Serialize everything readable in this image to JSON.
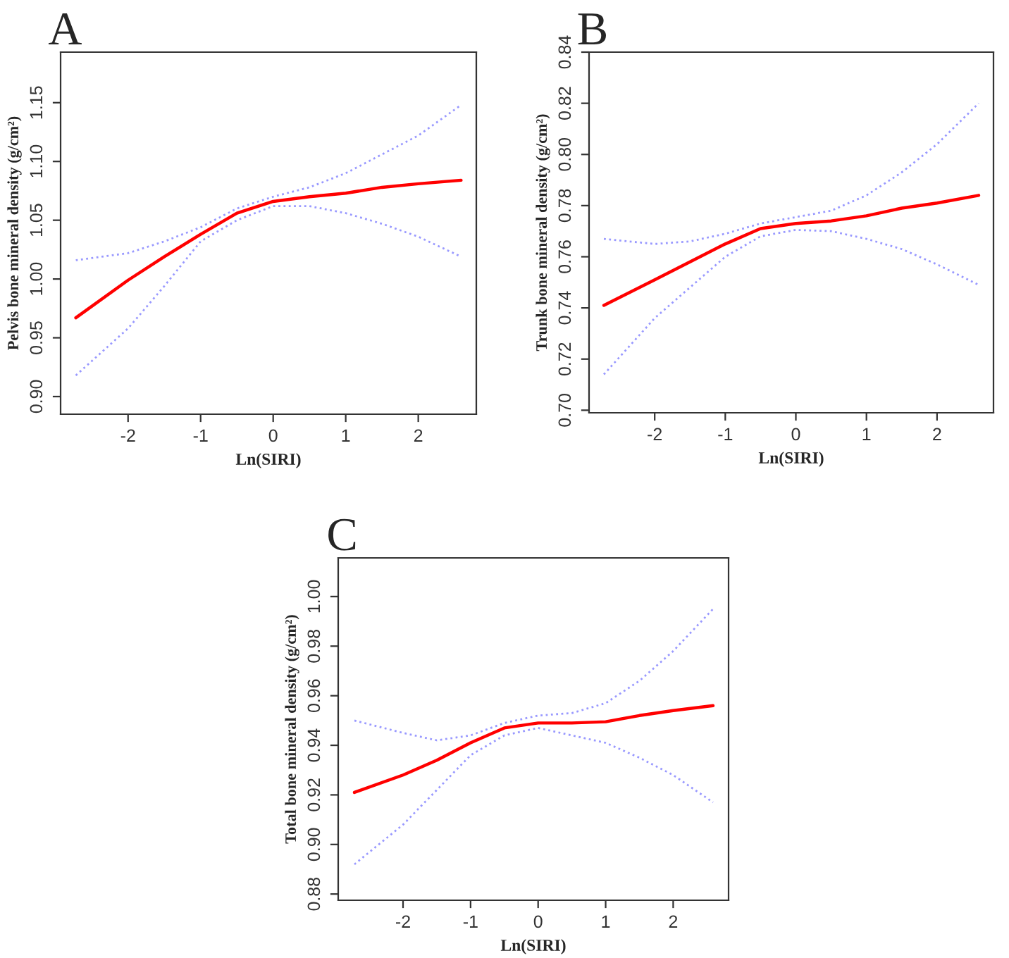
{
  "chart_data": [
    {
      "type": "line",
      "title": "A",
      "xlabel": "Ln(SIRI)",
      "ylabel": "Pelvis bone mineral density (g/cm²)",
      "xlim": [
        -2.93,
        2.8
      ],
      "ylim": [
        0.885,
        1.193
      ],
      "xticks": [
        -2,
        -1,
        0,
        1,
        2
      ],
      "yticks": [
        {
          "value": 0.9,
          "label": "0.90"
        },
        0.95,
        {
          "value": 1.0,
          "label": "1.00"
        },
        1.05,
        {
          "value": 1.1,
          "label": "1.10"
        },
        1.15
      ],
      "grid": false,
      "legend": false,
      "x": [
        -2.72,
        -2,
        -1.5,
        -1,
        -0.5,
        0,
        0.5,
        1,
        1.5,
        2,
        2.59
      ],
      "series": [
        {
          "color": "#9999ff",
          "line_style": "dotted",
          "values": [
            1.016,
            1.022,
            1.032,
            1.044,
            1.06,
            1.07,
            1.078,
            1.09,
            1.106,
            1.122,
            1.148
          ]
        },
        {
          "color": "#9999ff",
          "line_style": "dotted",
          "values": [
            0.918,
            0.958,
            0.994,
            1.032,
            1.05,
            1.062,
            1.062,
            1.056,
            1.047,
            1.036,
            1.019
          ]
        },
        {
          "color": "#ff0000",
          "line_style": "solid",
          "values": [
            0.967,
            0.999,
            1.019,
            1.038,
            1.056,
            1.066,
            1.07,
            1.073,
            1.078,
            1.081,
            1.084
          ]
        }
      ]
    },
    {
      "type": "line",
      "title": "B",
      "xlabel": "Ln(SIRI)",
      "ylabel": "Trunk bone mineral density (g/cm²)",
      "xlim": [
        -2.93,
        2.8
      ],
      "ylim": [
        0.699,
        0.84
      ],
      "xticks": [
        -2,
        -1,
        0,
        1,
        2
      ],
      "yticks": [
        {
          "value": 0.7,
          "label": "0.70"
        },
        0.72,
        0.74,
        0.76,
        0.78,
        {
          "value": 0.8,
          "label": "0.80"
        },
        0.82,
        0.84
      ],
      "grid": false,
      "legend": false,
      "x": [
        -2.72,
        -2,
        -1.5,
        -1,
        -0.5,
        0,
        0.5,
        1,
        1.5,
        2,
        2.59
      ],
      "series": [
        {
          "color": "#9999ff",
          "line_style": "dotted",
          "values": [
            0.767,
            0.765,
            0.766,
            0.769,
            0.773,
            0.7755,
            0.778,
            0.784,
            0.793,
            0.804,
            0.82
          ]
        },
        {
          "color": "#9999ff",
          "line_style": "dotted",
          "values": [
            0.714,
            0.736,
            0.748,
            0.76,
            0.768,
            0.7705,
            0.77,
            0.767,
            0.763,
            0.757,
            0.749
          ]
        },
        {
          "color": "#ff0000",
          "line_style": "solid",
          "values": [
            0.741,
            0.751,
            0.758,
            0.765,
            0.771,
            0.773,
            0.774,
            0.776,
            0.779,
            0.781,
            0.784
          ]
        }
      ]
    },
    {
      "type": "line",
      "title": "C",
      "xlabel": "Ln(SIRI)",
      "ylabel": "Total bone mineral density (g/cm²)",
      "xlim": [
        -2.96,
        2.82
      ],
      "ylim": [
        0.8775,
        1.0156
      ],
      "xticks": [
        -2,
        -1,
        0,
        1,
        2
      ],
      "yticks": [
        0.88,
        {
          "value": 0.9,
          "label": "0.90"
        },
        0.92,
        0.94,
        0.96,
        0.98,
        {
          "value": 1.0,
          "label": "1.00"
        }
      ],
      "grid": false,
      "legend": false,
      "x": [
        -2.72,
        -2,
        -1.5,
        -1,
        -0.5,
        0,
        0.5,
        1,
        1.5,
        2,
        2.59
      ],
      "series": [
        {
          "color": "#9999ff",
          "line_style": "dotted",
          "values": [
            0.95,
            0.945,
            0.942,
            0.944,
            0.949,
            0.952,
            0.953,
            0.957,
            0.966,
            0.978,
            0.995
          ]
        },
        {
          "color": "#9999ff",
          "line_style": "dotted",
          "values": [
            0.892,
            0.908,
            0.922,
            0.936,
            0.944,
            0.947,
            0.944,
            0.941,
            0.935,
            0.928,
            0.917
          ]
        },
        {
          "color": "#ff0000",
          "line_style": "solid",
          "values": [
            0.921,
            0.928,
            0.934,
            0.941,
            0.947,
            0.949,
            0.949,
            0.9495,
            0.952,
            0.954,
            0.956
          ]
        }
      ]
    }
  ]
}
